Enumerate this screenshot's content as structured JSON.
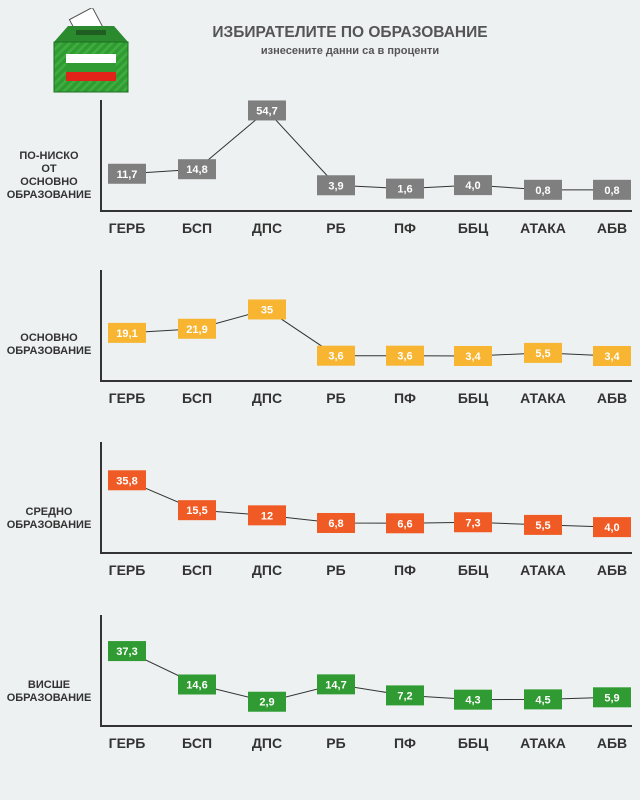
{
  "header": {
    "title": "ИЗБИРАТЕЛИТЕ ПО ОБРАЗОВАНИЕ",
    "subtitle": "изнесените данни са в проценти"
  },
  "colors": {
    "panel_1": "#7f7f7f",
    "panel_2": "#f7b531",
    "panel_3": "#f05a24",
    "panel_4": "#2f9b32",
    "axis": "#333333",
    "line": "#333333",
    "logo_green": "#2f9b32"
  },
  "logo": {
    "icon": "ballot-box-icon"
  },
  "chart_data": [
    {
      "type": "line",
      "label": "ПО-НИСКО\nОТ\nОСНОВНО\nОБРАЗОВАНИЕ",
      "categories": [
        "ГЕРБ",
        "БСП",
        "ДПС",
        "РБ",
        "ПФ",
        "ББЦ",
        "АТАКА",
        "АБВ"
      ],
      "values": [
        11.7,
        14.8,
        54.7,
        3.9,
        1.6,
        4.0,
        0.8,
        0.8
      ],
      "value_labels": [
        "11,7",
        "14,8",
        "54,7",
        "3,9",
        "1,6",
        "4,0",
        "0,8",
        "0,8"
      ],
      "color": "#7f7f7f",
      "ylim": [
        0,
        60
      ]
    },
    {
      "type": "line",
      "label": "ОСНОВНО\nОБРАЗОВАНИЕ",
      "categories": [
        "ГЕРБ",
        "БСП",
        "ДПС",
        "РБ",
        "ПФ",
        "ББЦ",
        "АТАКА",
        "АБВ"
      ],
      "values": [
        19.1,
        21.9,
        35,
        3.6,
        3.6,
        3.4,
        5.5,
        3.4
      ],
      "value_labels": [
        "19,1",
        "21,9",
        "35",
        "3,6",
        "3,6",
        "3,4",
        "5,5",
        "3,4"
      ],
      "color": "#f7b531",
      "ylim": [
        0,
        60
      ]
    },
    {
      "type": "line",
      "label": "СРЕДНО\nОБРАЗОВАНИЕ",
      "categories": [
        "ГЕРБ",
        "БСП",
        "ДПС",
        "РБ",
        "ПФ",
        "ББЦ",
        "АТАКА",
        "АБВ"
      ],
      "values": [
        35.8,
        15.5,
        12,
        6.8,
        6.6,
        7.3,
        5.5,
        4.0
      ],
      "value_labels": [
        "35,8",
        "15,5",
        "12",
        "6,8",
        "6,6",
        "7,3",
        "5,5",
        "4,0"
      ],
      "color": "#f05a24",
      "ylim": [
        0,
        60
      ]
    },
    {
      "type": "line",
      "label": "ВИСШЕ\nОБРАЗОВАНИЕ",
      "categories": [
        "ГЕРБ",
        "БСП",
        "ДПС",
        "РБ",
        "ПФ",
        "ББЦ",
        "АТАКА",
        "АБВ"
      ],
      "values": [
        37.3,
        14.6,
        2.9,
        14.7,
        7.2,
        4.3,
        4.5,
        5.9
      ],
      "value_labels": [
        "37,3",
        "14,6",
        "2,9",
        "14,7",
        "7,2",
        "4,3",
        "4,5",
        "5,9"
      ],
      "color": "#2f9b32",
      "ylim": [
        0,
        60
      ]
    }
  ]
}
